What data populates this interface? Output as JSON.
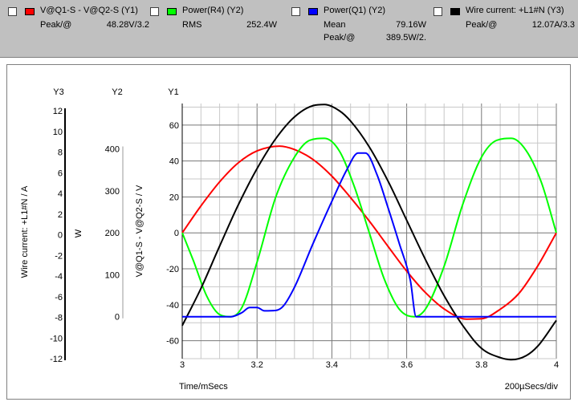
{
  "legend": [
    {
      "name": "V@Q1-S - V@Q2-S (Y1)",
      "color": "#ff0000",
      "stats": [
        {
          "label": "Peak/@",
          "value": "48.28V/3.2"
        }
      ]
    },
    {
      "name": "Power(R4) (Y2)",
      "color": "#00ff00",
      "stats": [
        {
          "label": "RMS",
          "value": "252.4W"
        }
      ]
    },
    {
      "name": "Power(Q1) (Y2)",
      "color": "#0000ff",
      "stats": [
        {
          "label": "Mean",
          "value": "79.16W"
        },
        {
          "label": "Peak/@",
          "value": "389.5W/2."
        }
      ]
    },
    {
      "name": "Wire current: +L1#N (Y3)",
      "color": "#000000",
      "stats": [
        {
          "label": "Peak/@",
          "value": "12.07A/3.3"
        }
      ]
    }
  ],
  "chart_data": {
    "type": "line",
    "xlabel": "Time/mSecs",
    "x_division_label": "200µSecs/div",
    "xlim": [
      3.0,
      4.0
    ],
    "xticks": [
      "3",
      "3.2",
      "3.4",
      "3.6",
      "3.8",
      "4"
    ],
    "grid": true,
    "axes": [
      {
        "id": "Y3",
        "label": "Wire current: +L1#N / A",
        "ylim": [
          -12,
          12.7
        ],
        "ticks": [
          "12",
          "10",
          "8",
          "6",
          "4",
          "2",
          "0",
          "-2",
          "-4",
          "-6",
          "-8",
          "-10",
          "-12"
        ]
      },
      {
        "id": "Y2",
        "label": "W",
        "ylim": [
          -100,
          508
        ],
        "ticks": [
          "400",
          "300",
          "200",
          "100",
          "0"
        ]
      },
      {
        "id": "Y1",
        "label": "V@Q1-S - V@Q2-S / V",
        "ylim": [
          -70,
          72
        ],
        "ticks": [
          "60",
          "40",
          "20",
          "0",
          "-20",
          "-40",
          "-60"
        ]
      }
    ],
    "series": [
      {
        "name": "V@Q1-S - V@Q2-S",
        "axis": "Y1",
        "color": "#ff0000",
        "x": [
          3.0,
          3.05,
          3.1,
          3.15,
          3.2,
          3.26,
          3.3,
          3.35,
          3.4,
          3.45,
          3.5,
          3.55,
          3.6,
          3.65,
          3.7,
          3.76,
          3.8,
          3.85,
          3.9,
          3.95,
          4.0
        ],
        "y": [
          0,
          15,
          28.4,
          39,
          45.6,
          48.28,
          46.4,
          40.8,
          31.6,
          19.6,
          6.6,
          -7.5,
          -21.3,
          -33.2,
          -42.3,
          -48.0,
          -47.8,
          -42.5,
          -33.7,
          -18.5,
          0
        ]
      },
      {
        "name": "Power(R4)",
        "axis": "Y2",
        "color": "#00ff00",
        "x": [
          3.0,
          3.03,
          3.065,
          3.1,
          3.13,
          3.16,
          3.2,
          3.25,
          3.3,
          3.34,
          3.38,
          3.42,
          3.46,
          3.5,
          3.54,
          3.58,
          3.62,
          3.65,
          3.7,
          3.75,
          3.8,
          3.84,
          3.88,
          3.92,
          3.96,
          4.0
        ],
        "y": [
          200,
          133,
          50,
          5,
          0,
          23,
          130,
          285,
          380,
          420,
          425,
          395,
          310,
          200,
          90,
          18,
          0,
          18,
          120,
          268,
          380,
          420,
          425,
          395,
          320,
          200
        ]
      },
      {
        "name": "Power(Q1)",
        "axis": "Y2",
        "color": "#0000ff",
        "x": [
          3.0,
          3.13,
          3.16,
          3.18,
          3.2,
          3.22,
          3.25,
          3.27,
          3.3,
          3.35,
          3.4,
          3.44,
          3.47,
          3.49,
          3.52,
          3.55,
          3.58,
          3.61,
          3.625,
          3.7,
          3.8,
          3.9,
          4.0
        ],
        "y": [
          0,
          0,
          10,
          22,
          22,
          14,
          15,
          25,
          70,
          175,
          275,
          350,
          390,
          390,
          340,
          260,
          175,
          85,
          0,
          0,
          0,
          0,
          0
        ]
      },
      {
        "name": "Wire current: +L1#N",
        "axis": "Y3",
        "color": "#000000",
        "x": [
          3.0,
          3.05,
          3.1,
          3.15,
          3.2,
          3.25,
          3.3,
          3.35,
          3.38,
          3.42,
          3.45,
          3.5,
          3.55,
          3.6,
          3.65,
          3.7,
          3.75,
          3.8,
          3.85,
          3.88,
          3.92,
          3.95,
          4.0
        ],
        "y": [
          -8.8,
          -5.2,
          -1.1,
          2.9,
          6.4,
          9.3,
          11.4,
          12.5,
          12.6,
          12.0,
          11.0,
          8.5,
          5.2,
          1.4,
          -2.4,
          -5.9,
          -8.8,
          -11.0,
          -11.9,
          -12.1,
          -11.7,
          -10.8,
          -8.3
        ]
      }
    ]
  }
}
